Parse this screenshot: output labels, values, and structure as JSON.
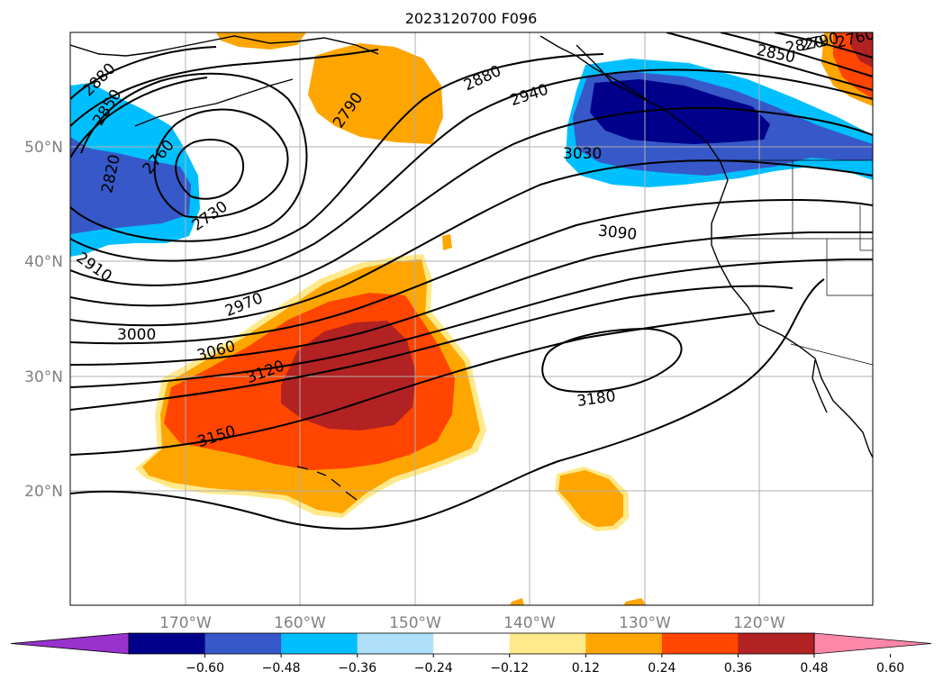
{
  "title": "2023120700 F096",
  "map": {
    "lat_ticks": [
      "50°N",
      "40°N",
      "30°N",
      "20°N"
    ],
    "lon_ticks": [
      "170°W",
      "160°W",
      "150°W",
      "140°W",
      "130°W",
      "120°W"
    ],
    "contour_labels": [
      "2880",
      "2850",
      "2820",
      "2760",
      "2730",
      "2910",
      "2790",
      "2880",
      "2940",
      "3030",
      "3090",
      "2970",
      "3000",
      "3060",
      "3120",
      "3150",
      "3180",
      "2850",
      "2820",
      "2790",
      "2760"
    ]
  },
  "colorbar": {
    "ticks": [
      "−0.60",
      "−0.48",
      "−0.36",
      "−0.24",
      "−0.12",
      "0.12",
      "0.24",
      "0.36",
      "0.48",
      "0.60"
    ],
    "colors": [
      "#9932cc",
      "#00008b",
      "#3658c8",
      "#00bfff",
      "#aee0fa",
      "#ffffff",
      "#ffe98a",
      "#ffa500",
      "#ff4500",
      "#b22222",
      "#ff88aa"
    ]
  }
}
